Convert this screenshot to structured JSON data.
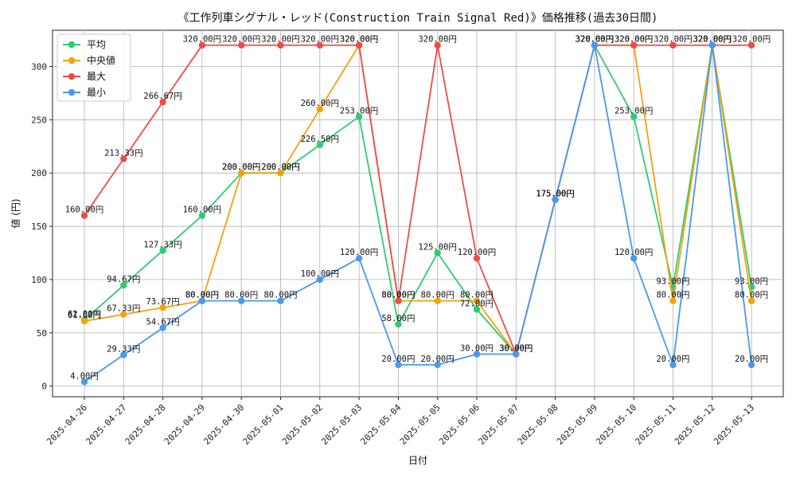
{
  "chart_data": {
    "type": "line",
    "title": "《工作列車シグナル・レッド(Construction Train Signal Red)》価格推移(過去30日間)",
    "xlabel": "日付",
    "ylabel": "値 (円)",
    "ylim": [
      -10,
      334
    ],
    "yticks": [
      0,
      50,
      100,
      150,
      200,
      250,
      300
    ],
    "grid": true,
    "legend_position": "top-left",
    "value_suffix": "円",
    "categories": [
      "2025-04-26",
      "2025-04-27",
      "2025-04-28",
      "2025-04-29",
      "2025-04-30",
      "2025-05-01",
      "2025-05-02",
      "2025-05-03",
      "2025-05-04",
      "2025-05-05",
      "2025-05-06",
      "2025-05-07",
      "2025-05-08",
      "2025-05-09",
      "2025-05-10",
      "2025-05-11",
      "2025-05-12",
      "2025-05-13"
    ],
    "series": [
      {
        "name": "平均",
        "color": "#2ecc71",
        "values": [
          62,
          94.67,
          127.33,
          160,
          200,
          200,
          226.5,
          253,
          58,
          125,
          72,
          30,
          175,
          320,
          253,
          93,
          320,
          93
        ]
      },
      {
        "name": "中央値",
        "color": "#f5a10b",
        "values": [
          61,
          67.33,
          73.67,
          80,
          200,
          200,
          260,
          320,
          80,
          80,
          80,
          30,
          175,
          320,
          320,
          80,
          320,
          80
        ]
      },
      {
        "name": "最大",
        "color": "#ee4b4b",
        "values": [
          160,
          213.33,
          266.67,
          320,
          320,
          320,
          320,
          320,
          80,
          320,
          120,
          30,
          175,
          320,
          320,
          320,
          320,
          320
        ]
      },
      {
        "name": "最小",
        "color": "#4a98f0",
        "values": [
          4,
          29.33,
          54.67,
          80,
          80,
          80,
          100,
          120,
          20,
          20,
          30,
          30,
          175,
          320,
          120,
          20,
          320,
          20
        ]
      }
    ]
  }
}
